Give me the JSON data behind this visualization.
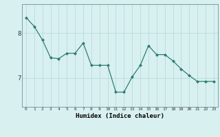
{
  "x": [
    0,
    1,
    2,
    3,
    4,
    5,
    6,
    7,
    8,
    9,
    10,
    11,
    12,
    13,
    14,
    15,
    16,
    17,
    18,
    19,
    20,
    21,
    22,
    23
  ],
  "y": [
    8.35,
    8.15,
    7.85,
    7.45,
    7.43,
    7.55,
    7.55,
    7.78,
    7.28,
    7.28,
    7.28,
    6.68,
    6.68,
    7.02,
    7.28,
    7.72,
    7.52,
    7.52,
    7.38,
    7.2,
    7.05,
    6.92,
    6.92,
    6.92
  ],
  "line_color": "#2e7d6e",
  "marker": "D",
  "marker_size": 2.0,
  "bg_color": "#d9f0f0",
  "grid_color": "#b8dada",
  "grid_major_color": "#c0c0c0",
  "xlabel": "Humidex (Indice chaleur)",
  "ytick_labels": [
    "7",
    "8"
  ],
  "ytick_positions": [
    7.0,
    8.0
  ],
  "xlim": [
    -0.5,
    23.5
  ],
  "ylim": [
    6.35,
    8.65
  ],
  "figsize": [
    3.2,
    2.0
  ],
  "dpi": 100
}
